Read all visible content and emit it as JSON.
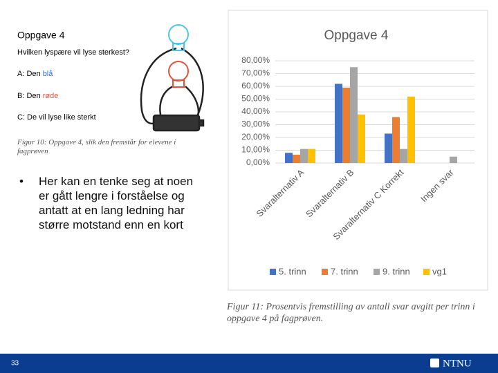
{
  "slide": {
    "figure10": {
      "title": "Oppgave 4",
      "question": "Hvilken lyspære vil lyse sterkest?",
      "options": [
        {
          "text": "A: Den ",
          "highlight": "blå"
        },
        {
          "text": "B: Den ",
          "highlight": "røde"
        },
        {
          "text": "C: De vil lyse like sterkt"
        }
      ],
      "caption": "Figur 10: Oppgave 4, slik den fremstår for elevene i fagprøven"
    },
    "bullet": "Her kan en tenke seg at noen er gått lengre i forståelse og antatt at en lang ledning har større motstand enn en kort",
    "figure11_caption": "Figur 11: Prosentvis fremstilling av antall svar avgitt per trinn i oppgave 4 på fagprøven.",
    "page_number": "33",
    "logo": "NTNU"
  },
  "chart_data": {
    "type": "bar",
    "title": "Oppgave 4",
    "categories": [
      "Svaralternativ A",
      "Svaralternativ B",
      "Svaralternativ C Korrekt",
      "Ingen svar"
    ],
    "series": [
      {
        "name": "5. trinn",
        "color": "#4472c4",
        "values": [
          8,
          62,
          23,
          0
        ]
      },
      {
        "name": "7. trinn",
        "color": "#ed7d31",
        "values": [
          6.5,
          59,
          36,
          0
        ]
      },
      {
        "name": "9. trinn",
        "color": "#a5a5a5",
        "values": [
          11,
          75,
          11,
          5
        ]
      },
      {
        "name": "vg1",
        "color": "#ffc000",
        "values": [
          11,
          38,
          52,
          0
        ]
      }
    ],
    "ylim": [
      0,
      80
    ],
    "yticks": [
      {
        "value": 0,
        "label": "0,00%"
      },
      {
        "value": 10,
        "label": "10,00%"
      },
      {
        "value": 20,
        "label": "20,00%"
      },
      {
        "value": 30,
        "label": "30,00%"
      },
      {
        "value": 40,
        "label": "40,00%"
      },
      {
        "value": 50,
        "label": "50,00%"
      },
      {
        "value": 60,
        "label": "60,00%"
      },
      {
        "value": 70,
        "label": "70,00%"
      },
      {
        "value": 80,
        "label": "80,00%"
      }
    ],
    "grid": true,
    "legend": "bottom"
  }
}
